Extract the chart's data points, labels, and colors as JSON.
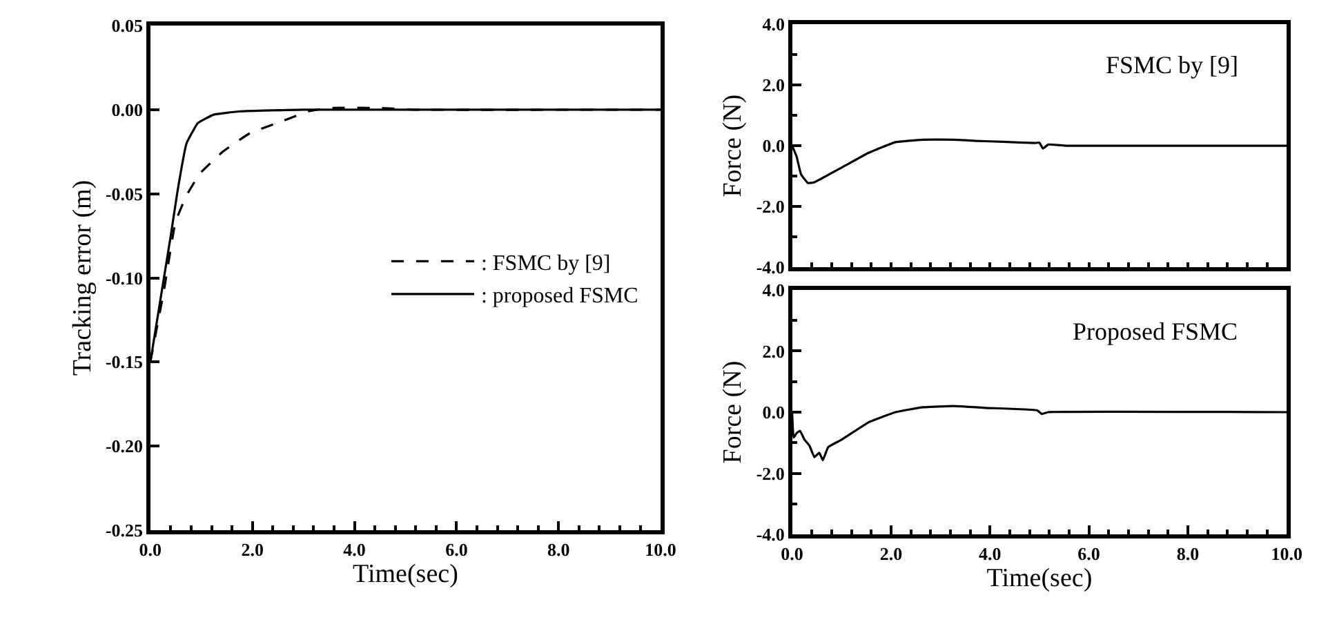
{
  "chart_data": [
    {
      "type": "line",
      "xlabel": "Time(sec)",
      "ylabel": "Tracking error (m)",
      "xlim": [
        0,
        10
      ],
      "xticks": [
        {
          "value": 0,
          "label": "0.0"
        },
        {
          "value": 2,
          "label": "2.0"
        },
        {
          "value": 4,
          "label": "4.0"
        },
        {
          "value": 6,
          "label": "6.0"
        },
        {
          "value": 8,
          "label": "8.0"
        },
        {
          "value": 10,
          "label": "10.0"
        }
      ],
      "ylim": [
        -0.25,
        0.05
      ],
      "yticks": [
        {
          "value": 0.05,
          "label": "0.05"
        },
        {
          "value": 0,
          "label": "0.00"
        },
        {
          "value": -0.05,
          "label": "-0.05"
        },
        {
          "value": -0.1,
          "label": "-0.10"
        },
        {
          "value": -0.15,
          "label": "-0.15"
        },
        {
          "value": -0.2,
          "label": "-0.20"
        },
        {
          "value": -0.25,
          "label": "-0.25"
        }
      ],
      "grid": false,
      "legend": "right",
      "marker": "none",
      "series": [
        {
          "name": ": FSMC by [9]",
          "color": "#000000",
          "line_style": "dashed",
          "x": [
            0,
            0.27,
            0.49,
            0.71,
            0.97,
            1.42,
            1.95,
            2.57,
            3.1,
            3.5,
            4.5,
            5.2,
            10
          ],
          "values": [
            -0.15,
            -0.107,
            -0.067,
            -0.051,
            -0.038,
            -0.025,
            -0.014,
            -0.007,
            -0.001,
            0.001,
            0.001,
            0,
            0
          ]
        },
        {
          "name": ": proposed FSMC",
          "color": "#000000",
          "line_style": "solid",
          "x": [
            0,
            0.4,
            0.53,
            0.71,
            0.93,
            1.24,
            1.77,
            3,
            10
          ],
          "values": [
            -0.15,
            -0.075,
            -0.049,
            -0.02,
            -0.008,
            -0.003,
            -0.001,
            0,
            0
          ]
        }
      ]
    },
    {
      "type": "line",
      "ylabel": "Force (N)",
      "annotations": [
        "FSMC by [9]"
      ],
      "xlim": [
        0,
        10
      ],
      "xticks": [
        {
          "value": 0,
          "label": null
        },
        {
          "value": 2,
          "label": null
        },
        {
          "value": 4,
          "label": null
        },
        {
          "value": 6,
          "label": null
        },
        {
          "value": 8,
          "label": null
        },
        {
          "value": 10,
          "label": null
        }
      ],
      "ylim": [
        -4,
        4
      ],
      "yticks": [
        {
          "value": 4,
          "label": "4.0"
        },
        {
          "value": 2,
          "label": "2.0"
        },
        {
          "value": 0,
          "label": "0.0"
        },
        {
          "value": -2,
          "label": "-2.0"
        },
        {
          "value": -4,
          "label": "-4.0"
        }
      ],
      "tick_labels": "y",
      "grid": false,
      "marker": "none",
      "series": [
        {
          "color": "#000000",
          "line_style": "solid",
          "x": [
            0,
            0.09,
            0.18,
            0.32,
            0.45,
            1.0,
            1.55,
            2.09,
            2.64,
            3.27,
            3.73,
            4.27,
            4.9,
            5.0,
            5.07,
            5.18,
            5.55,
            10
          ],
          "values": [
            0,
            -0.35,
            -0.94,
            -1.23,
            -1.2,
            -0.72,
            -0.23,
            0.12,
            0.2,
            0.2,
            0.16,
            0.13,
            0.09,
            0.1,
            -0.09,
            0.04,
            0,
            0
          ]
        }
      ]
    },
    {
      "type": "line",
      "xlabel": "Time(sec)",
      "ylabel": "Force (N)",
      "annotations": [
        "Proposed FSMC"
      ],
      "xlim": [
        0,
        10
      ],
      "xticks": [
        {
          "value": 0,
          "label": "0.0"
        },
        {
          "value": 2,
          "label": "2.0"
        },
        {
          "value": 4,
          "label": "4.0"
        },
        {
          "value": 6,
          "label": "6.0"
        },
        {
          "value": 8,
          "label": "8.0"
        },
        {
          "value": 10,
          "label": "10.0"
        }
      ],
      "ylim": [
        -4,
        4
      ],
      "yticks": [
        {
          "value": 4,
          "label": "4.0"
        },
        {
          "value": 2,
          "label": "2.0"
        },
        {
          "value": 0,
          "label": "0.0"
        },
        {
          "value": -2,
          "label": "-2.0"
        },
        {
          "value": -4,
          "label": "-4.0"
        }
      ],
      "grid": false,
      "marker": "none",
      "series": [
        {
          "color": "#000000",
          "line_style": "solid",
          "x": [
            0,
            0.03,
            0.09,
            0.16,
            0.25,
            0.35,
            0.45,
            0.55,
            0.62,
            0.73,
            1.0,
            1.55,
            2.09,
            2.64,
            3.27,
            3.91,
            4.95,
            5.05,
            5.18,
            10
          ],
          "values": [
            0,
            -0.83,
            -0.69,
            -0.61,
            -0.9,
            -1.09,
            -1.47,
            -1.33,
            -1.57,
            -1.14,
            -0.9,
            -0.33,
            0,
            0.16,
            0.2,
            0.14,
            0.06,
            -0.06,
            0,
            0
          ]
        }
      ]
    }
  ]
}
